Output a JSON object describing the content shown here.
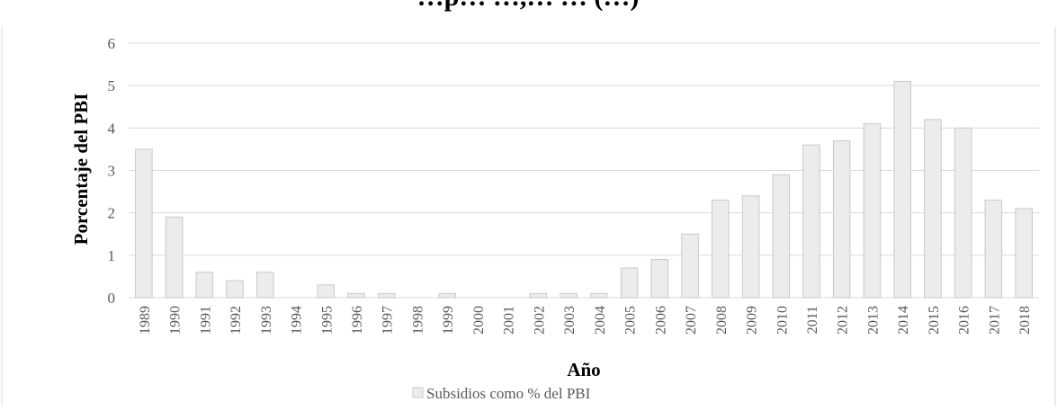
{
  "chart_data": {
    "type": "bar",
    "title": "…p… …,… … (…)",
    "xlabel": "Año",
    "ylabel": "Porcentaje del PBI",
    "ylim": [
      0,
      6
    ],
    "yticks": [
      "0",
      "1",
      "2",
      "3",
      "4",
      "5",
      "6"
    ],
    "grid": true,
    "legend": "bottom",
    "colors": {
      "bar_fill": "#ececec",
      "bar_stroke": "#c9c9c9",
      "grid": "#d9d9d9"
    },
    "categories": [
      "1989",
      "1990",
      "1991",
      "1992",
      "1993",
      "1994",
      "1995",
      "1996",
      "1997",
      "1998",
      "1999",
      "2000",
      "2001",
      "2002",
      "2003",
      "2004",
      "2005",
      "2006",
      "2007",
      "2008",
      "2009",
      "2010",
      "2011",
      "2012",
      "2013",
      "2014",
      "2015",
      "2016",
      "2017",
      "2018"
    ],
    "series": [
      {
        "name": "Subsidios como % del PBI",
        "values": [
          3.5,
          1.9,
          0.6,
          0.4,
          0.6,
          0,
          0.3,
          0.1,
          0.1,
          0,
          0.1,
          0,
          0,
          0.1,
          0.1,
          0.1,
          0.7,
          0.9,
          1.5,
          2.3,
          2.4,
          2.9,
          3.6,
          3.7,
          4.1,
          5.1,
          4.2,
          4.0,
          2.3,
          2.1
        ]
      }
    ]
  }
}
